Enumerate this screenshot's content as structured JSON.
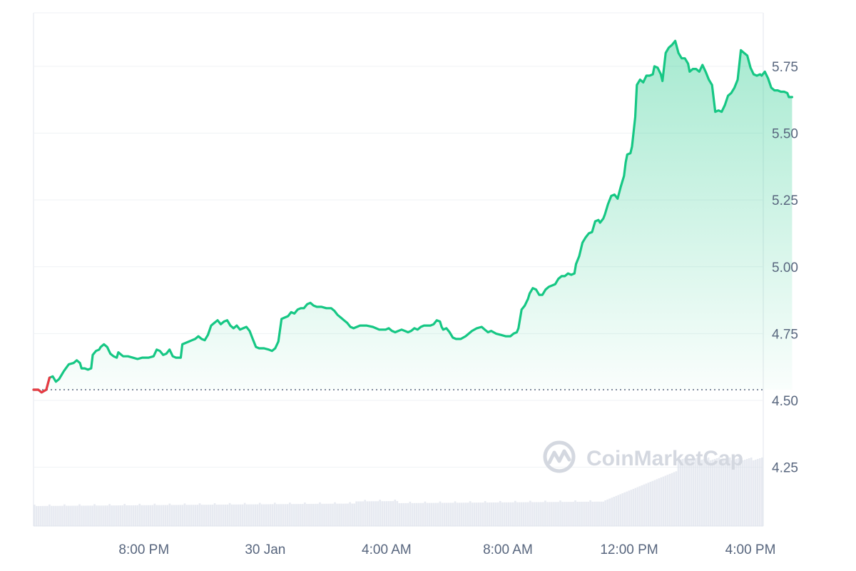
{
  "chart_data": {
    "type": "area",
    "ylim": [
      4.03,
      5.95
    ],
    "y_ticks": [
      "5.75",
      "5.50",
      "5.25",
      "5.00",
      "4.75",
      "4.50",
      "4.25"
    ],
    "y_tick_values": [
      5.75,
      5.5,
      5.25,
      5.0,
      4.75,
      4.5,
      4.25
    ],
    "x_ticks": [
      "8:00 PM",
      "30 Jan",
      "4:00 AM",
      "8:00 AM",
      "12:00 PM",
      "4:00 PM"
    ],
    "x_tick_hours": [
      3.45,
      7.24,
      11.03,
      14.82,
      18.61,
      22.4
    ],
    "x_range_hours": [
      0,
      22.8
    ],
    "baseline": 4.54,
    "colors": {
      "up": "#16c784",
      "down": "#ea3943",
      "grid": "#eff2f5",
      "volume": "#dde1eb"
    },
    "series": [
      {
        "values": [
          [
            0.0,
            4.54
          ],
          [
            0.15,
            4.54
          ],
          [
            0.25,
            4.53
          ],
          [
            0.4,
            4.54
          ],
          [
            0.5,
            4.585
          ],
          [
            0.6,
            4.59
          ],
          [
            0.7,
            4.57
          ],
          [
            0.8,
            4.58
          ],
          [
            0.95,
            4.61
          ],
          [
            1.1,
            4.635
          ],
          [
            1.25,
            4.64
          ],
          [
            1.35,
            4.65
          ],
          [
            1.45,
            4.64
          ],
          [
            1.5,
            4.62
          ],
          [
            1.6,
            4.62
          ],
          [
            1.7,
            4.615
          ],
          [
            1.8,
            4.62
          ],
          [
            1.85,
            4.67
          ],
          [
            1.95,
            4.685
          ],
          [
            2.05,
            4.69
          ],
          [
            2.1,
            4.7
          ],
          [
            2.2,
            4.71
          ],
          [
            2.3,
            4.7
          ],
          [
            2.4,
            4.675
          ],
          [
            2.5,
            4.665
          ],
          [
            2.6,
            4.66
          ],
          [
            2.65,
            4.68
          ],
          [
            2.8,
            4.665
          ],
          [
            2.95,
            4.665
          ],
          [
            3.1,
            4.66
          ],
          [
            3.25,
            4.655
          ],
          [
            3.4,
            4.66
          ],
          [
            3.6,
            4.66
          ],
          [
            3.75,
            4.665
          ],
          [
            3.85,
            4.69
          ],
          [
            3.95,
            4.685
          ],
          [
            4.05,
            4.67
          ],
          [
            4.15,
            4.675
          ],
          [
            4.25,
            4.69
          ],
          [
            4.35,
            4.665
          ],
          [
            4.45,
            4.66
          ],
          [
            4.6,
            4.66
          ],
          [
            4.65,
            4.71
          ],
          [
            4.75,
            4.715
          ],
          [
            4.85,
            4.72
          ],
          [
            4.95,
            4.725
          ],
          [
            5.05,
            4.73
          ],
          [
            5.15,
            4.74
          ],
          [
            5.25,
            4.73
          ],
          [
            5.35,
            4.725
          ],
          [
            5.45,
            4.745
          ],
          [
            5.55,
            4.78
          ],
          [
            5.65,
            4.79
          ],
          [
            5.75,
            4.8
          ],
          [
            5.85,
            4.785
          ],
          [
            5.95,
            4.795
          ],
          [
            6.05,
            4.8
          ],
          [
            6.15,
            4.78
          ],
          [
            6.25,
            4.77
          ],
          [
            6.35,
            4.78
          ],
          [
            6.45,
            4.765
          ],
          [
            6.55,
            4.77
          ],
          [
            6.65,
            4.775
          ],
          [
            6.75,
            4.76
          ],
          [
            6.85,
            4.73
          ],
          [
            6.95,
            4.7
          ],
          [
            7.05,
            4.695
          ],
          [
            7.2,
            4.695
          ],
          [
            7.35,
            4.69
          ],
          [
            7.45,
            4.685
          ],
          [
            7.55,
            4.695
          ],
          [
            7.65,
            4.72
          ],
          [
            7.75,
            4.805
          ],
          [
            7.85,
            4.81
          ],
          [
            7.95,
            4.815
          ],
          [
            8.05,
            4.83
          ],
          [
            8.15,
            4.825
          ],
          [
            8.25,
            4.84
          ],
          [
            8.35,
            4.845
          ],
          [
            8.45,
            4.845
          ],
          [
            8.55,
            4.86
          ],
          [
            8.65,
            4.865
          ],
          [
            8.75,
            4.855
          ],
          [
            8.85,
            4.85
          ],
          [
            9.0,
            4.85
          ],
          [
            9.15,
            4.845
          ],
          [
            9.3,
            4.845
          ],
          [
            9.4,
            4.835
          ],
          [
            9.5,
            4.82
          ],
          [
            9.6,
            4.81
          ],
          [
            9.7,
            4.8
          ],
          [
            9.8,
            4.79
          ],
          [
            9.9,
            4.775
          ],
          [
            10.0,
            4.77
          ],
          [
            10.1,
            4.775
          ],
          [
            10.2,
            4.78
          ],
          [
            10.4,
            4.78
          ],
          [
            10.6,
            4.775
          ],
          [
            10.7,
            4.77
          ],
          [
            10.8,
            4.765
          ],
          [
            11.0,
            4.765
          ],
          [
            11.1,
            4.77
          ],
          [
            11.2,
            4.76
          ],
          [
            11.3,
            4.755
          ],
          [
            11.4,
            4.76
          ],
          [
            11.5,
            4.765
          ],
          [
            11.6,
            4.76
          ],
          [
            11.7,
            4.755
          ],
          [
            11.8,
            4.76
          ],
          [
            11.9,
            4.77
          ],
          [
            12.0,
            4.765
          ],
          [
            12.1,
            4.775
          ],
          [
            12.2,
            4.78
          ],
          [
            12.3,
            4.78
          ],
          [
            12.4,
            4.78
          ],
          [
            12.5,
            4.785
          ],
          [
            12.6,
            4.8
          ],
          [
            12.7,
            4.795
          ],
          [
            12.75,
            4.775
          ],
          [
            12.8,
            4.765
          ],
          [
            12.9,
            4.77
          ],
          [
            13.0,
            4.755
          ],
          [
            13.1,
            4.735
          ],
          [
            13.2,
            4.73
          ],
          [
            13.35,
            4.73
          ],
          [
            13.5,
            4.74
          ],
          [
            13.6,
            4.75
          ],
          [
            13.7,
            4.76
          ],
          [
            13.85,
            4.77
          ],
          [
            14.0,
            4.775
          ],
          [
            14.1,
            4.765
          ],
          [
            14.2,
            4.755
          ],
          [
            14.3,
            4.76
          ],
          [
            14.45,
            4.75
          ],
          [
            14.6,
            4.745
          ],
          [
            14.75,
            4.74
          ],
          [
            14.9,
            4.74
          ],
          [
            15.0,
            4.75
          ],
          [
            15.1,
            4.755
          ],
          [
            15.15,
            4.77
          ],
          [
            15.25,
            4.84
          ],
          [
            15.35,
            4.855
          ],
          [
            15.45,
            4.88
          ],
          [
            15.5,
            4.9
          ],
          [
            15.6,
            4.92
          ],
          [
            15.7,
            4.915
          ],
          [
            15.8,
            4.895
          ],
          [
            15.9,
            4.895
          ],
          [
            16.0,
            4.915
          ],
          [
            16.1,
            4.925
          ],
          [
            16.2,
            4.93
          ],
          [
            16.3,
            4.935
          ],
          [
            16.4,
            4.955
          ],
          [
            16.5,
            4.965
          ],
          [
            16.6,
            4.965
          ],
          [
            16.7,
            4.975
          ],
          [
            16.8,
            4.97
          ],
          [
            16.9,
            4.975
          ],
          [
            16.95,
            5.01
          ],
          [
            17.05,
            5.04
          ],
          [
            17.15,
            5.09
          ],
          [
            17.25,
            5.11
          ],
          [
            17.35,
            5.125
          ],
          [
            17.45,
            5.13
          ],
          [
            17.55,
            5.17
          ],
          [
            17.65,
            5.175
          ],
          [
            17.7,
            5.165
          ],
          [
            17.8,
            5.18
          ],
          [
            17.85,
            5.195
          ],
          [
            17.95,
            5.235
          ],
          [
            18.05,
            5.265
          ],
          [
            18.15,
            5.27
          ],
          [
            18.25,
            5.255
          ],
          [
            18.35,
            5.3
          ],
          [
            18.45,
            5.34
          ],
          [
            18.5,
            5.39
          ],
          [
            18.55,
            5.42
          ],
          [
            18.65,
            5.425
          ],
          [
            18.7,
            5.45
          ],
          [
            18.8,
            5.56
          ],
          [
            18.85,
            5.68
          ],
          [
            18.95,
            5.7
          ],
          [
            19.05,
            5.69
          ],
          [
            19.15,
            5.715
          ],
          [
            19.25,
            5.715
          ],
          [
            19.35,
            5.72
          ],
          [
            19.4,
            5.75
          ],
          [
            19.5,
            5.745
          ],
          [
            19.6,
            5.72
          ],
          [
            19.65,
            5.695
          ],
          [
            19.75,
            5.8
          ],
          [
            19.85,
            5.82
          ],
          [
            19.95,
            5.83
          ],
          [
            20.05,
            5.845
          ],
          [
            20.15,
            5.8
          ],
          [
            20.25,
            5.78
          ],
          [
            20.35,
            5.78
          ],
          [
            20.45,
            5.76
          ],
          [
            20.5,
            5.73
          ],
          [
            20.6,
            5.74
          ],
          [
            20.7,
            5.74
          ],
          [
            20.8,
            5.73
          ],
          [
            20.9,
            5.755
          ],
          [
            21.0,
            5.73
          ],
          [
            21.1,
            5.7
          ],
          [
            21.2,
            5.68
          ],
          [
            21.3,
            5.58
          ],
          [
            21.4,
            5.585
          ],
          [
            21.5,
            5.58
          ],
          [
            21.6,
            5.605
          ],
          [
            21.7,
            5.64
          ],
          [
            21.8,
            5.65
          ],
          [
            21.9,
            5.67
          ],
          [
            22.0,
            5.7
          ],
          [
            22.1,
            5.81
          ],
          [
            22.2,
            5.8
          ],
          [
            22.3,
            5.79
          ],
          [
            22.4,
            5.745
          ],
          [
            22.5,
            5.72
          ],
          [
            22.6,
            5.715
          ],
          [
            22.7,
            5.72
          ],
          [
            22.75,
            5.715
          ],
          [
            22.85,
            5.73
          ],
          [
            22.95,
            5.705
          ],
          [
            23.05,
            5.67
          ],
          [
            23.15,
            5.66
          ],
          [
            23.25,
            5.66
          ],
          [
            23.35,
            5.655
          ],
          [
            23.45,
            5.655
          ],
          [
            23.55,
            5.65
          ],
          [
            23.6,
            5.635
          ],
          [
            23.7,
            5.635
          ]
        ]
      }
    ]
  },
  "watermark": {
    "text": "CoinMarketCap"
  }
}
